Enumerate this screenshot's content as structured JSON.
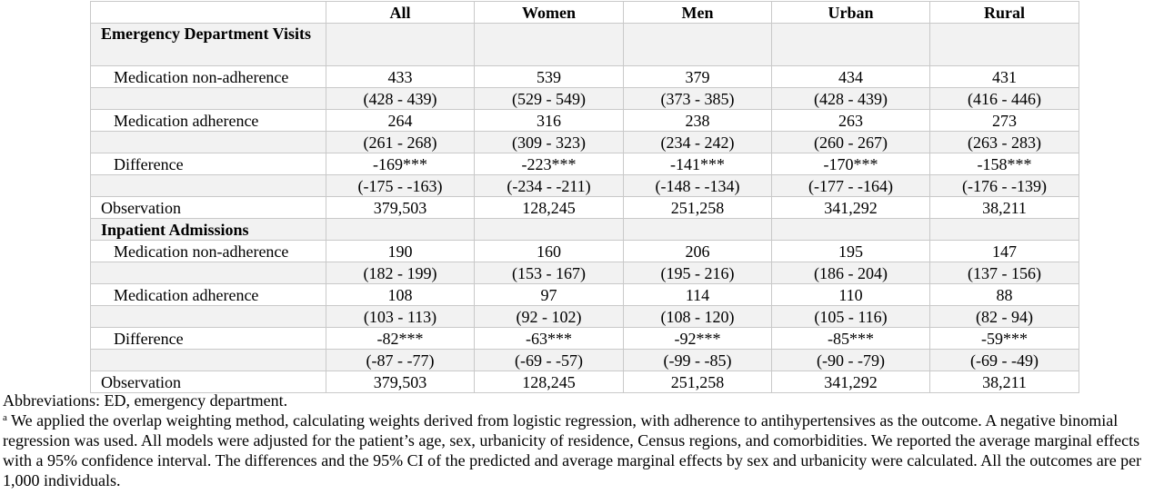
{
  "table": {
    "headers": [
      "",
      "All",
      "Women",
      "Men",
      "Urban",
      "Rural"
    ],
    "rows": [
      {
        "kind": "section",
        "label": "Emergency Department Visits",
        "values": [
          "",
          "",
          "",
          "",
          ""
        ]
      },
      {
        "kind": "row",
        "label": "Medication non-adherence",
        "values": [
          "433",
          "539",
          "379",
          "434",
          "431"
        ]
      },
      {
        "kind": "ci",
        "label": "",
        "values": [
          "(428 - 439)",
          "(529 - 549)",
          "(373 - 385)",
          "(428 - 439)",
          "(416 - 446)"
        ]
      },
      {
        "kind": "row",
        "label": "Medication adherence",
        "values": [
          "264",
          "316",
          "238",
          "263",
          "273"
        ]
      },
      {
        "kind": "ci",
        "label": "",
        "values": [
          "(261 - 268)",
          "(309 - 323)",
          "(234 - 242)",
          "(260 - 267)",
          "(263 - 283)"
        ]
      },
      {
        "kind": "row",
        "label": "Difference",
        "values": [
          "-169***",
          "-223***",
          "-141***",
          "-170***",
          "-158***"
        ]
      },
      {
        "kind": "ci",
        "label": "",
        "values": [
          "(-175 - -163)",
          "(-234 - -211)",
          "(-148 - -134)",
          "(-177 - -164)",
          "(-176 - -139)"
        ]
      },
      {
        "kind": "obs",
        "label": "Observation",
        "values": [
          "379,503",
          "128,245",
          "251,258",
          "341,292",
          "38,211"
        ]
      },
      {
        "kind": "section",
        "label": "Inpatient Admissions",
        "values": [
          "",
          "",
          "",
          "",
          ""
        ]
      },
      {
        "kind": "row",
        "label": "Medication non-adherence",
        "values": [
          "190",
          "160",
          "206",
          "195",
          "147"
        ]
      },
      {
        "kind": "ci",
        "label": "",
        "values": [
          "(182 - 199)",
          "(153 - 167)",
          "(195 - 216)",
          "(186 - 204)",
          "(137 - 156)"
        ]
      },
      {
        "kind": "row",
        "label": "Medication adherence",
        "values": [
          "108",
          "97",
          "114",
          "110",
          "88"
        ]
      },
      {
        "kind": "ci",
        "label": "",
        "values": [
          "(103 - 113)",
          "(92 - 102)",
          "(108 - 120)",
          "(105 - 116)",
          "(82 - 94)"
        ]
      },
      {
        "kind": "row",
        "label": "Difference",
        "values": [
          "-82***",
          "-63***",
          "-92***",
          "-85***",
          "-59***"
        ]
      },
      {
        "kind": "ci",
        "label": "",
        "values": [
          "(-87 - -77)",
          "(-69 - -57)",
          "(-99 - -85)",
          "(-90 - -79)",
          "(-69 - -49)"
        ]
      },
      {
        "kind": "obs",
        "label": "Observation",
        "values": [
          "379,503",
          "128,245",
          "251,258",
          "341,292",
          "38,211"
        ]
      }
    ]
  },
  "notes": {
    "abbreviations": "Abbreviations: ED, emergency department.",
    "footnote_marker": "a",
    "footnote": " We applied the overlap weighting method, calculating weights derived from logistic regression, with adherence to antihypertensives as the outcome. A negative binomial regression was used. All models were adjusted for the patient’s age, sex, urbanicity of residence, Census regions, and comorbidities. We reported the average marginal effects with a 95% confidence interval. The differences and the 95% CI of the predicted and average marginal effects by sex and urbanicity were calculated. All the outcomes are per 1,000 individuals."
  }
}
